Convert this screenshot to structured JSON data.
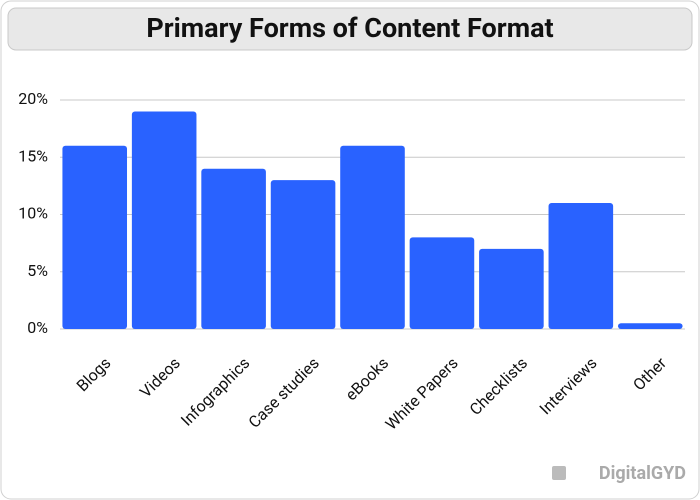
{
  "chart_data": {
    "type": "bar",
    "title": "Primary Forms of Content Format",
    "categories": [
      "Blogs",
      "Videos",
      "Infographics",
      "Case studies",
      "eBooks",
      "White Papers",
      "Checklists",
      "Interviews",
      "Other"
    ],
    "values": [
      16,
      19,
      14,
      13,
      16,
      8,
      7,
      11,
      0.5
    ],
    "color": "#2962ff",
    "ylim": [
      0,
      20
    ],
    "yticks": [
      {
        "value": 0,
        "label": "0%"
      },
      {
        "value": 5,
        "label": "5%"
      },
      {
        "value": 10,
        "label": "10%"
      },
      {
        "value": 15,
        "label": "15%"
      },
      {
        "value": 20,
        "label": "20%"
      }
    ],
    "grid": true,
    "watermark": "DigitalGYD"
  }
}
